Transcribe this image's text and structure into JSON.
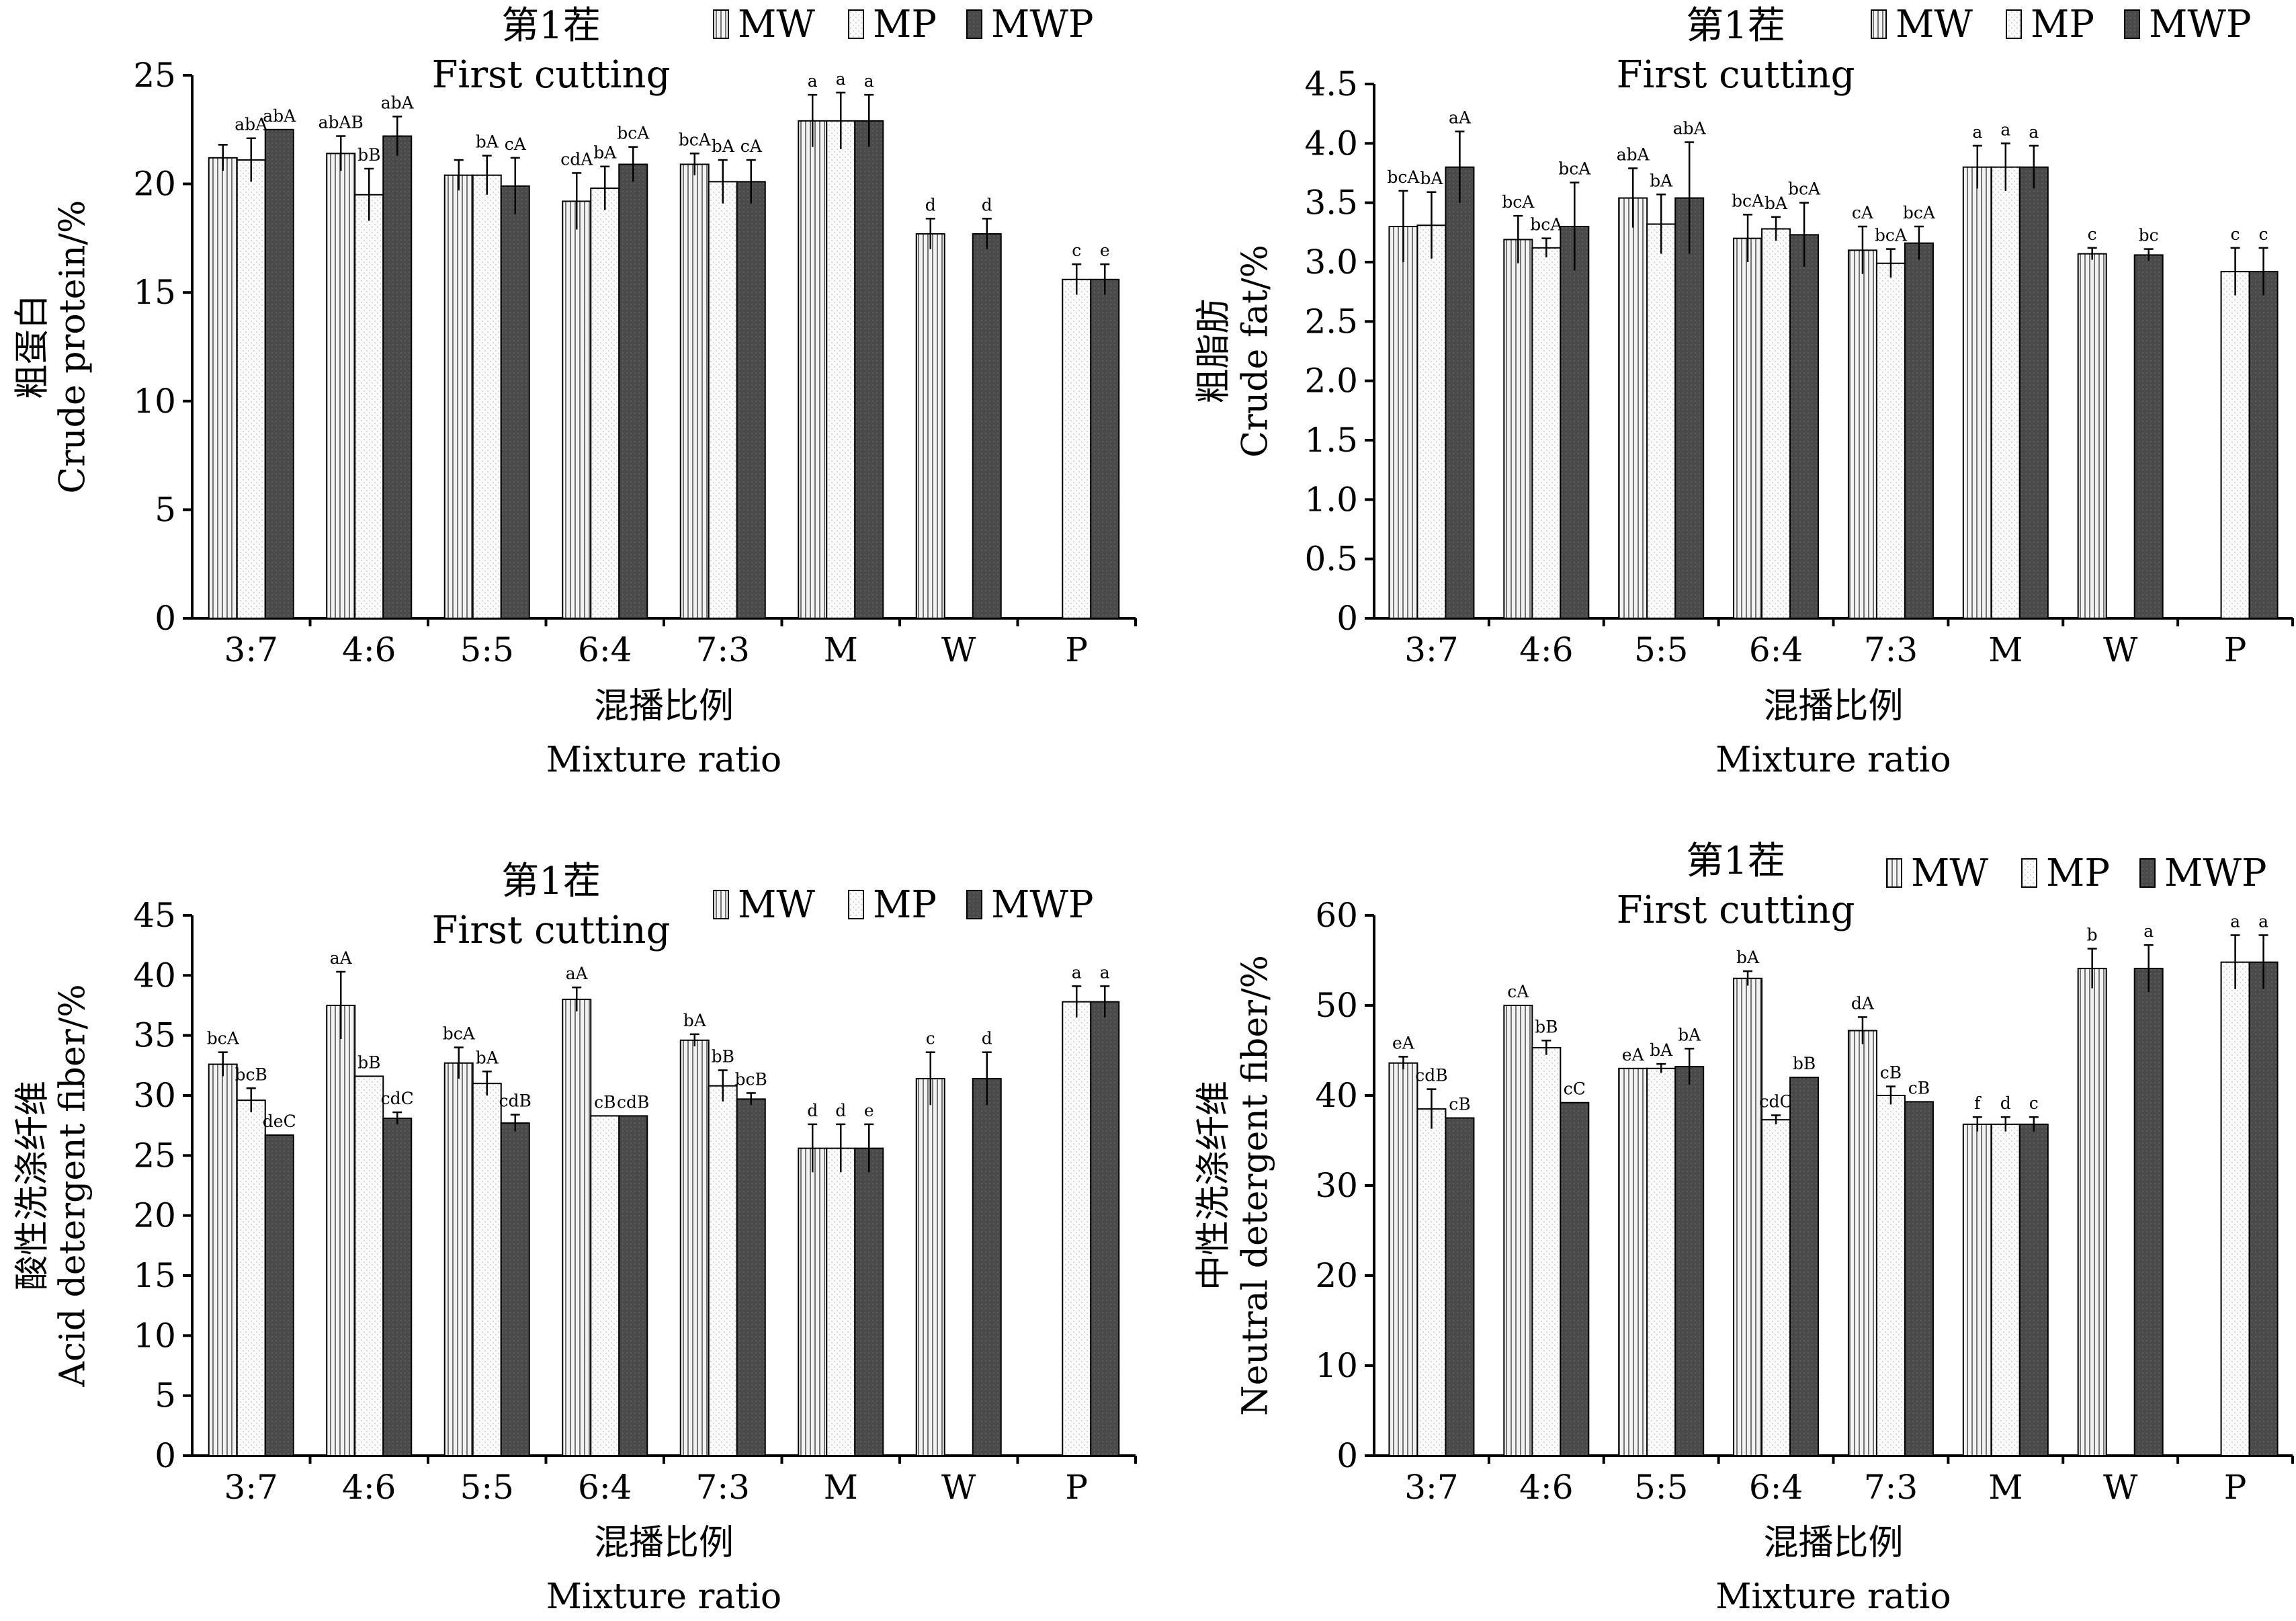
{
  "legend": [
    {
      "key": "MW",
      "label": "MW"
    },
    {
      "key": "MP",
      "label": "MP"
    },
    {
      "key": "MWP",
      "label": "MWP"
    }
  ],
  "series_fill": {
    "MW": "#e6e6e6",
    "MP": "#f6f6f6",
    "MWP": "#4d4d4d"
  },
  "chart_data": [
    {
      "type": "bar",
      "title_cn": "第1茬",
      "title_en": "First cutting",
      "ylabel_cn": "粗蛋白",
      "ylabel_en": "Crude protein/%",
      "xlabel_cn": "混播比例",
      "xlabel_en": "Mixture ratio",
      "ylim": [
        0,
        25
      ],
      "yticks": [
        "0",
        "5",
        "10",
        "15",
        "20",
        "25"
      ],
      "categories": [
        "3:7",
        "4:6",
        "5:5",
        "6:4",
        "7:3",
        "M",
        "W",
        "P"
      ],
      "series": [
        {
          "name": "MW",
          "values": [
            21.2,
            21.4,
            20.4,
            19.2,
            20.9,
            22.9,
            17.7,
            null
          ],
          "errors": [
            0.6,
            0.8,
            0.7,
            1.3,
            0.5,
            1.2,
            0.7,
            null
          ],
          "labels": [
            "",
            "abAB",
            "",
            "cdA",
            "bcA",
            "a",
            "d",
            ""
          ]
        },
        {
          "name": "MP",
          "values": [
            21.1,
            19.5,
            20.4,
            19.8,
            20.1,
            22.9,
            null,
            15.6
          ],
          "errors": [
            1.0,
            1.2,
            0.9,
            1.0,
            1.0,
            1.3,
            null,
            0.7
          ],
          "labels": [
            "abA",
            "bB",
            "bA",
            "bA",
            "bA",
            "a",
            "",
            "c"
          ]
        },
        {
          "name": "MWP",
          "values": [
            22.5,
            22.2,
            19.9,
            20.9,
            20.1,
            22.9,
            17.7,
            15.6
          ],
          "errors": [
            0.0,
            0.9,
            1.3,
            0.8,
            1.0,
            1.2,
            0.7,
            0.7
          ],
          "labels": [
            "abA",
            "abA",
            "cA",
            "bcA",
            "cA",
            "a",
            "d",
            "e"
          ]
        }
      ]
    },
    {
      "type": "bar",
      "title_cn": "第1茬",
      "title_en": "First cutting",
      "ylabel_cn": "粗脂肪",
      "ylabel_en": "Crude fat/%",
      "xlabel_cn": "混播比例",
      "xlabel_en": "Mixture ratio",
      "ylim": [
        0,
        4.5
      ],
      "yticks": [
        "0",
        "0.5",
        "1.0",
        "1.5",
        "2.0",
        "2.5",
        "3.0",
        "3.5",
        "4.0",
        "4.5"
      ],
      "categories": [
        "3:7",
        "4:6",
        "5:5",
        "6:4",
        "7:3",
        "M",
        "W",
        "P"
      ],
      "series": [
        {
          "name": "MW",
          "values": [
            3.3,
            3.19,
            3.54,
            3.2,
            3.1,
            3.8,
            3.07,
            null
          ],
          "errors": [
            0.3,
            0.2,
            0.25,
            0.2,
            0.2,
            0.18,
            0.05,
            null
          ],
          "labels": [
            "bcA",
            "bcA",
            "abA",
            "bcA",
            "cA",
            "a",
            "c",
            ""
          ]
        },
        {
          "name": "MP",
          "values": [
            3.31,
            3.12,
            3.32,
            3.28,
            2.99,
            3.8,
            null,
            2.92
          ],
          "errors": [
            0.28,
            0.08,
            0.25,
            0.1,
            0.12,
            0.2,
            null,
            0.2
          ],
          "labels": [
            "bA",
            "bcA",
            "bA",
            "bA",
            "bcA",
            "a",
            "",
            "c"
          ]
        },
        {
          "name": "MWP",
          "values": [
            3.8,
            3.3,
            3.54,
            3.23,
            3.16,
            3.8,
            3.06,
            2.92
          ],
          "errors": [
            0.3,
            0.37,
            0.47,
            0.27,
            0.14,
            0.18,
            0.05,
            0.2
          ],
          "labels": [
            "aA",
            "bcA",
            "abA",
            "bcA",
            "bcA",
            "a",
            "bc",
            "c"
          ]
        }
      ]
    },
    {
      "type": "bar",
      "title_cn": "第1茬",
      "title_en": "First cutting",
      "ylabel_cn": "酸性洗涤纤维",
      "ylabel_en": "Acid detergent fiber/%",
      "xlabel_cn": "混播比例",
      "xlabel_en": "Mixture ratio",
      "ylim": [
        0,
        45
      ],
      "yticks": [
        "0",
        "5",
        "10",
        "15",
        "20",
        "25",
        "30",
        "35",
        "40",
        "45"
      ],
      "categories": [
        "3:7",
        "4:6",
        "5:5",
        "6:4",
        "7:3",
        "M",
        "W",
        "P"
      ],
      "series": [
        {
          "name": "MW",
          "values": [
            32.6,
            37.5,
            32.7,
            38.0,
            34.6,
            25.6,
            31.4,
            null
          ],
          "errors": [
            1.0,
            2.8,
            1.3,
            1.0,
            0.5,
            2.0,
            2.2,
            null
          ],
          "labels": [
            "bcA",
            "aA",
            "bcA",
            "aA",
            "bA",
            "d",
            "c",
            ""
          ]
        },
        {
          "name": "MP",
          "values": [
            29.6,
            31.6,
            31.0,
            28.3,
            30.8,
            25.6,
            null,
            37.8
          ],
          "errors": [
            1.0,
            0.0,
            1.0,
            0.0,
            1.3,
            2.0,
            null,
            1.3
          ],
          "labels": [
            "bcB",
            "bB",
            "bA",
            "cB",
            "bB",
            "d",
            "",
            "a"
          ]
        },
        {
          "name": "MWP",
          "values": [
            26.7,
            28.1,
            27.7,
            28.3,
            29.7,
            25.6,
            31.4,
            37.8
          ],
          "errors": [
            0.0,
            0.5,
            0.7,
            0.0,
            0.5,
            2.0,
            2.2,
            1.3
          ],
          "labels": [
            "deC",
            "cdC",
            "cdB",
            "cdB",
            "bcB",
            "e",
            "d",
            "a"
          ]
        }
      ]
    },
    {
      "type": "bar",
      "title_cn": "第1茬",
      "title_en": "First cutting",
      "ylabel_cn": "中性洗涤纤维",
      "ylabel_en": "Neutral detergent fiber/%",
      "xlabel_cn": "混播比例",
      "xlabel_en": "Mixture ratio",
      "ylim": [
        0,
        60
      ],
      "yticks": [
        "0",
        "10",
        "20",
        "30",
        "40",
        "50",
        "60"
      ],
      "categories": [
        "3:7",
        "4:6",
        "5:5",
        "6:4",
        "7:3",
        "M",
        "W",
        "P"
      ],
      "series": [
        {
          "name": "MW",
          "values": [
            43.6,
            50.0,
            43.0,
            53.0,
            47.2,
            36.8,
            54.1,
            null
          ],
          "errors": [
            0.7,
            0.0,
            0.0,
            0.8,
            1.5,
            0.8,
            2.2,
            null
          ],
          "labels": [
            "eA",
            "cA",
            "eA",
            "bA",
            "dA",
            "f",
            "b",
            ""
          ]
        },
        {
          "name": "MP",
          "values": [
            38.5,
            45.3,
            43.0,
            37.3,
            40.0,
            36.8,
            null,
            54.8
          ],
          "errors": [
            2.2,
            0.8,
            0.5,
            0.5,
            1.0,
            0.8,
            null,
            3.0
          ],
          "labels": [
            "cdB",
            "bB",
            "bA",
            "cdC",
            "cB",
            "d",
            "",
            "a"
          ]
        },
        {
          "name": "MWP",
          "values": [
            37.5,
            39.2,
            43.2,
            42.0,
            39.3,
            36.8,
            54.1,
            54.8
          ],
          "errors": [
            0.0,
            0.0,
            2.0,
            0.0,
            0.0,
            0.8,
            2.6,
            3.0
          ],
          "labels": [
            "cB",
            "cC",
            "bA",
            "bB",
            "cB",
            "c",
            "a",
            "a"
          ]
        }
      ]
    }
  ]
}
